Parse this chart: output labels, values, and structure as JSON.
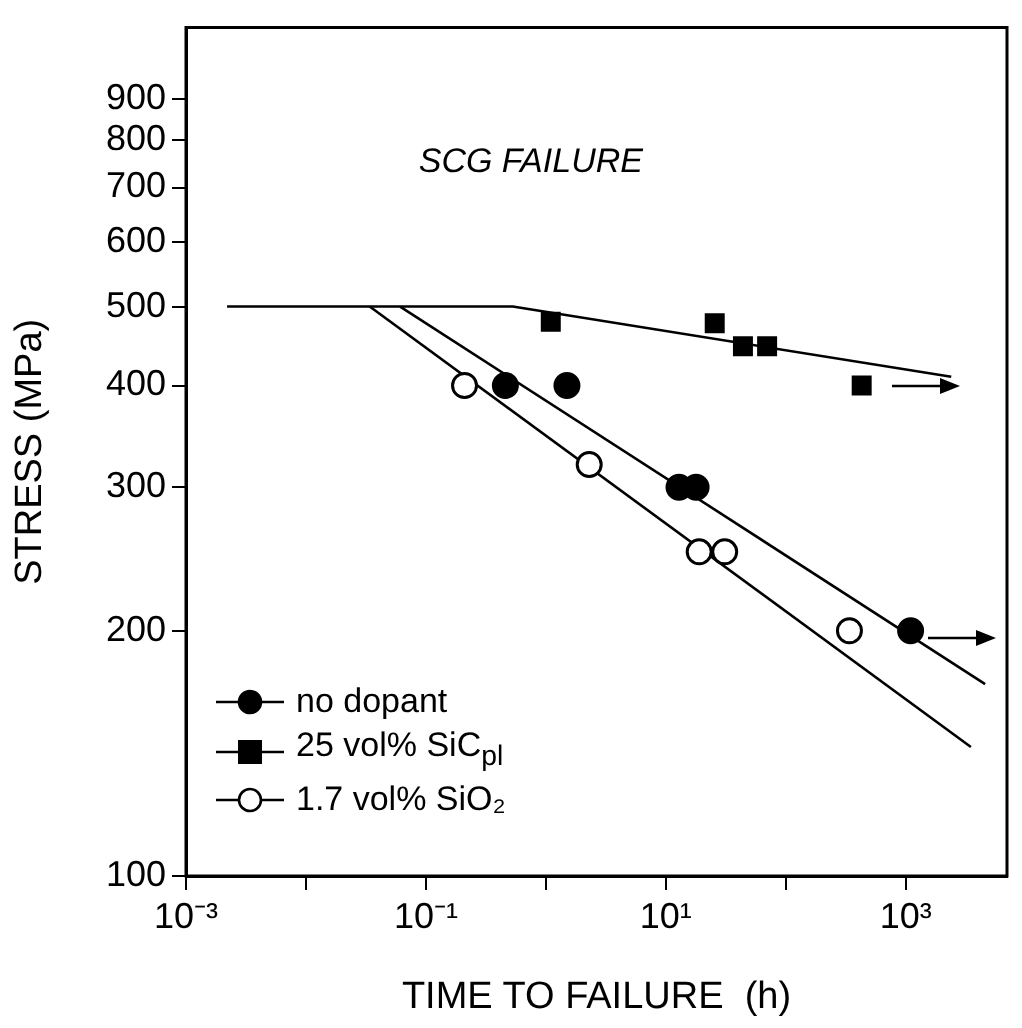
{
  "chart_data": {
    "type": "scatter",
    "xlabel": "TIME TO FAILURE  (h)",
    "ylabel": "STRESS (MPa)",
    "log": "xy",
    "xlim": [
      0.001,
      7000
    ],
    "ylim": [
      100,
      1100
    ],
    "xticks": [
      {
        "value": 0.001,
        "label": "10⁻³"
      },
      {
        "value": 0.01,
        "label": null
      },
      {
        "value": 0.1,
        "label": "10⁻¹"
      },
      {
        "value": 1,
        "label": null
      },
      {
        "value": 10,
        "label": "10¹"
      },
      {
        "value": 100,
        "label": null
      },
      {
        "value": 1000,
        "label": "10³"
      }
    ],
    "yticks": [
      100,
      200,
      300,
      400,
      500,
      600,
      700,
      800,
      900
    ],
    "grid": false,
    "legend": "bottom left",
    "annotations": [
      "SCG FAILURE"
    ],
    "series": [
      {
        "name": "no dopant",
        "color": "#000000",
        "marker": "circle",
        "x": [
          0.46,
          1.5,
          12.9,
          17.9,
          1100
        ],
        "values": [
          400,
          400,
          300,
          300,
          200
        ]
      },
      {
        "name": "25 vol% SiC$_{pl}$",
        "color": "#000000",
        "marker": "square",
        "x": [
          1.1,
          25.6,
          44,
          70,
          430
        ],
        "values": [
          479,
          477,
          447,
          447,
          400
        ]
      },
      {
        "name": "1.7 vol% SiO₂",
        "color": "#ffffff",
        "marker": "circle",
        "x": [
          0.21,
          2.3,
          19,
          31,
          340
        ],
        "values": [
          400,
          320,
          250,
          250,
          200
        ]
      },
      {
        "type": "line",
        "color": "#000000",
        "marker": "none",
        "x": [
          0.0022,
          0.53,
          2400
        ],
        "values": [
          500,
          500,
          410
        ]
      },
      {
        "type": "line",
        "color": "#000000",
        "marker": "none",
        "x": [
          0.061,
          4600
        ],
        "values": [
          500,
          172
        ]
      },
      {
        "type": "line",
        "color": "#000000",
        "marker": "none",
        "x": [
          0.034,
          3500
        ],
        "values": [
          500,
          144
        ]
      }
    ]
  }
}
